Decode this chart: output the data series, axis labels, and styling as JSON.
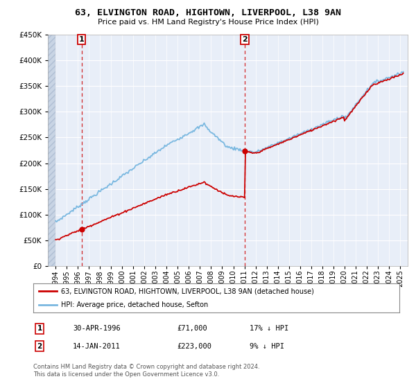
{
  "title": "63, ELVINGTON ROAD, HIGHTOWN, LIVERPOOL, L38 9AN",
  "subtitle": "Price paid vs. HM Land Registry's House Price Index (HPI)",
  "legend_line1": "63, ELVINGTON ROAD, HIGHTOWN, LIVERPOOL, L38 9AN (detached house)",
  "legend_line2": "HPI: Average price, detached house, Sefton",
  "transaction1_date": "30-APR-1996",
  "transaction1_price": "£71,000",
  "transaction1_hpi": "17% ↓ HPI",
  "transaction2_date": "14-JAN-2011",
  "transaction2_price": "£223,000",
  "transaction2_hpi": "9% ↓ HPI",
  "footer": "Contains HM Land Registry data © Crown copyright and database right 2024.\nThis data is licensed under the Open Government Licence v3.0.",
  "hpi_color": "#7ab8e0",
  "price_color": "#cc0000",
  "plot_bg_color": "#e8eef8",
  "ylim": [
    0,
    450000
  ],
  "yticks": [
    0,
    50000,
    100000,
    150000,
    200000,
    250000,
    300000,
    350000,
    400000,
    450000
  ],
  "transaction1_year": 1996.33,
  "transaction1_value": 71000,
  "transaction2_year": 2011.04,
  "transaction2_value": 223000,
  "xlim_left": 1993.3,
  "xlim_right": 2025.7
}
